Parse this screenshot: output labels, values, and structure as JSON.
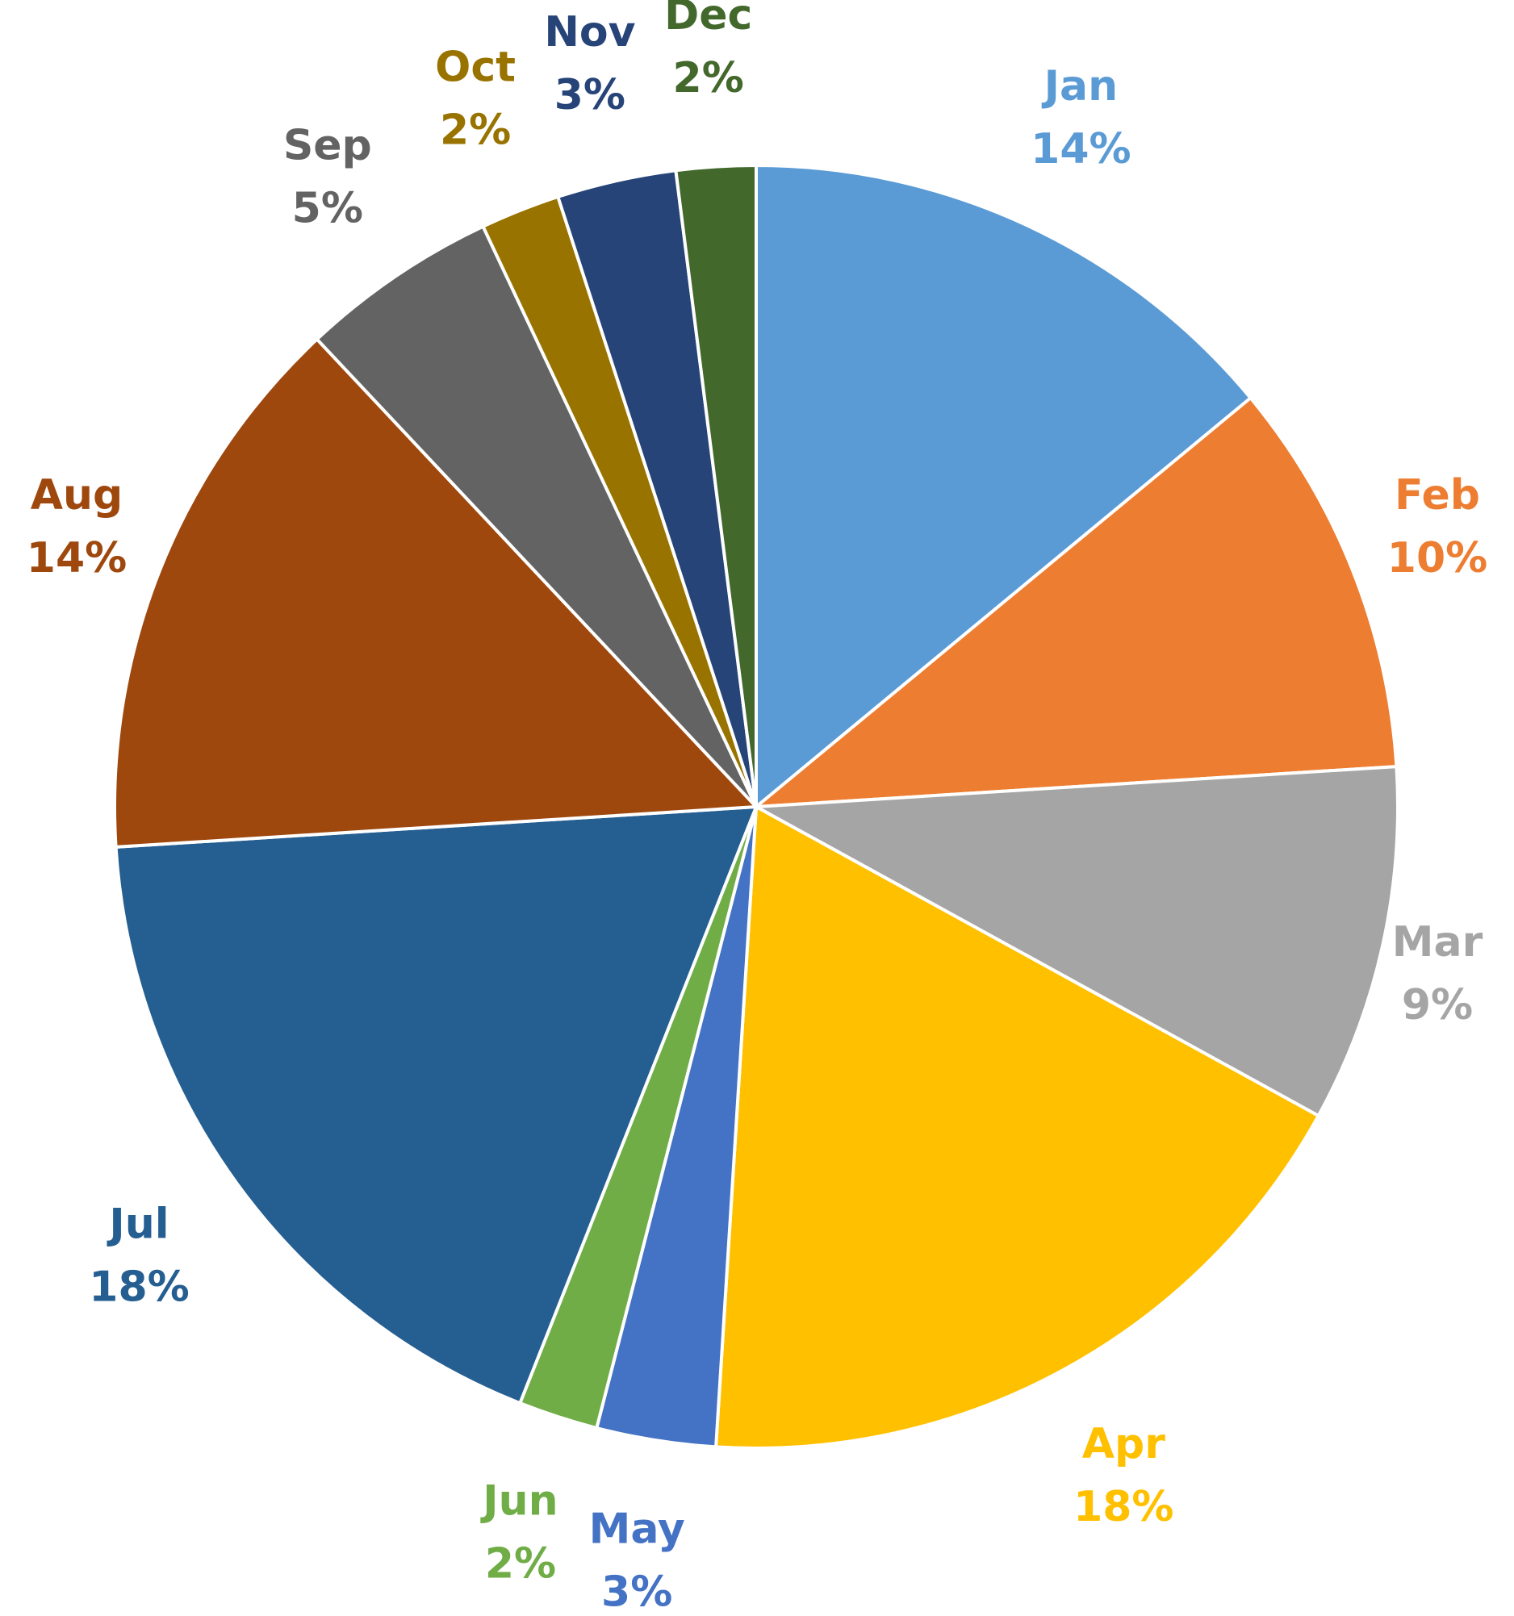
{
  "chart_data": {
    "type": "pie",
    "title": "",
    "start_angle_deg": 0,
    "direction": "clockwise",
    "legend": "none",
    "slices": [
      {
        "label": "Jan",
        "value": 14,
        "value_label": "14%",
        "color": "#5B9BD5"
      },
      {
        "label": "Feb",
        "value": 10,
        "value_label": "10%",
        "color": "#ED7D31"
      },
      {
        "label": "Mar",
        "value": 9,
        "value_label": "9%",
        "color": "#A5A5A5"
      },
      {
        "label": "Apr",
        "value": 18,
        "value_label": "18%",
        "color": "#FFC000"
      },
      {
        "label": "May",
        "value": 3,
        "value_label": "3%",
        "color": "#4472C4"
      },
      {
        "label": "Jun",
        "value": 2,
        "value_label": "2%",
        "color": "#70AD47"
      },
      {
        "label": "Jul",
        "value": 18,
        "value_label": "18%",
        "color": "#255E91"
      },
      {
        "label": "Aug",
        "value": 14,
        "value_label": "14%",
        "color": "#9E480E"
      },
      {
        "label": "Sep",
        "value": 5,
        "value_label": "5%",
        "color": "#636363"
      },
      {
        "label": "Oct",
        "value": 2,
        "value_label": "2%",
        "color": "#997300"
      },
      {
        "label": "Nov",
        "value": 3,
        "value_label": "3%",
        "color": "#264478"
      },
      {
        "label": "Dec",
        "value": 2,
        "value_label": "2%",
        "color": "#43682B"
      }
    ]
  }
}
